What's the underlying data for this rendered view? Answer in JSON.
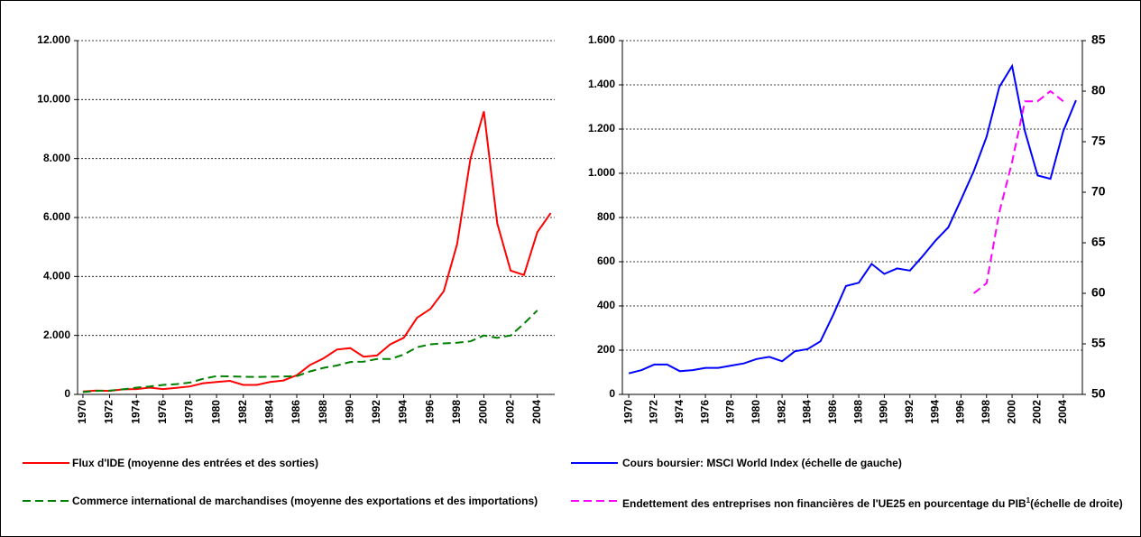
{
  "chart_data": [
    {
      "type": "line",
      "x": [
        1970,
        1971,
        1972,
        1973,
        1974,
        1975,
        1976,
        1977,
        1978,
        1979,
        1980,
        1981,
        1982,
        1983,
        1984,
        1985,
        1986,
        1987,
        1988,
        1989,
        1990,
        1991,
        1992,
        1993,
        1994,
        1995,
        1996,
        1997,
        1998,
        1999,
        2000,
        2001,
        2002,
        2003,
        2004,
        2005
      ],
      "xlim": [
        1969.6,
        2005.3
      ],
      "xticks": [
        1970,
        1972,
        1974,
        1976,
        1978,
        1980,
        1982,
        1984,
        1986,
        1988,
        1990,
        1992,
        1994,
        1996,
        1998,
        2000,
        2002,
        2004
      ],
      "ylim": [
        0,
        12000
      ],
      "yticks": [
        0,
        {
          "value": 2000,
          "label": "2.000"
        },
        {
          "value": 4000,
          "label": "4.000"
        },
        {
          "value": 6000,
          "label": "6.000"
        },
        {
          "value": 8000,
          "label": "8.000"
        },
        {
          "value": 10000,
          "label": "10.000"
        },
        {
          "value": 12000,
          "label": "12.000"
        }
      ],
      "grid": true,
      "series": [
        {
          "name": "Flux d'IDE (moyenne des entrées et des sorties)",
          "color": "#ff0000",
          "style": "solid",
          "values": [
            100,
            130,
            120,
            170,
            180,
            230,
            180,
            220,
            270,
            380,
            420,
            460,
            320,
            320,
            420,
            470,
            650,
            1000,
            1220,
            1520,
            1570,
            1280,
            1320,
            1700,
            1920,
            2600,
            2900,
            3500,
            5100,
            8000,
            9600,
            5800,
            4200,
            4050,
            5500,
            6150
          ]
        },
        {
          "name": "Commerce international de marchandises (moyenne des exportations et des importations)",
          "color": "#008000",
          "style": "dashed",
          "values": [
            80,
            120,
            130,
            170,
            230,
            270,
            320,
            350,
            400,
            530,
            620,
            610,
            600,
            590,
            600,
            610,
            620,
            780,
            900,
            980,
            1100,
            1110,
            1200,
            1200,
            1350,
            1600,
            1700,
            1730,
            1750,
            1800,
            2000,
            1920,
            2000,
            2400,
            2850,
            null
          ]
        }
      ]
    },
    {
      "type": "line",
      "x": [
        1970,
        1971,
        1972,
        1973,
        1974,
        1975,
        1976,
        1977,
        1978,
        1979,
        1980,
        1981,
        1982,
        1983,
        1984,
        1985,
        1986,
        1987,
        1988,
        1989,
        1990,
        1991,
        1992,
        1993,
        1994,
        1995,
        1996,
        1997,
        1998,
        1999,
        2000,
        2001,
        2002,
        2003,
        2004,
        2005
      ],
      "xlim": [
        1969.5,
        2005.5
      ],
      "xticks": [
        1970,
        1972,
        1974,
        1976,
        1978,
        1980,
        1982,
        1984,
        1986,
        1988,
        1990,
        1992,
        1994,
        1996,
        1998,
        2000,
        2002,
        2004
      ],
      "ylim": [
        0,
        1600
      ],
      "yticks": [
        0,
        200,
        400,
        600,
        800,
        {
          "value": 1000,
          "label": "1.000"
        },
        {
          "value": 1200,
          "label": "1.200"
        },
        {
          "value": 1400,
          "label": "1.400"
        },
        {
          "value": 1600,
          "label": "1.600"
        }
      ],
      "y2lim": [
        50,
        85
      ],
      "y2ticks": [
        50,
        55,
        60,
        65,
        70,
        75,
        80,
        85
      ],
      "grid": true,
      "series": [
        {
          "name": "Cours boursier: MSCI World Index (échelle de gauche)",
          "color": "#0000ff",
          "style": "solid",
          "values": [
            95,
            110,
            135,
            135,
            105,
            110,
            120,
            120,
            130,
            140,
            160,
            170,
            150,
            195,
            205,
            240,
            360,
            490,
            505,
            590,
            545,
            570,
            560,
            625,
            695,
            755,
            880,
            1010,
            1165,
            1390,
            1485,
            1190,
            990,
            975,
            1190,
            1330
          ]
        },
        {
          "name": "Endettement des entreprises non financières de l'UE25 en pourcentage du PIB",
          "name_note": "1",
          "name_suffix": "(échelle de droite)",
          "color": "#ff00ff",
          "style": "dashed",
          "axis": "y2",
          "values": [
            null,
            null,
            null,
            null,
            null,
            null,
            null,
            null,
            null,
            null,
            null,
            null,
            null,
            null,
            null,
            null,
            null,
            null,
            null,
            null,
            null,
            null,
            null,
            null,
            null,
            null,
            null,
            60,
            61,
            68,
            73,
            79,
            79,
            80,
            79,
            null
          ]
        }
      ]
    }
  ]
}
